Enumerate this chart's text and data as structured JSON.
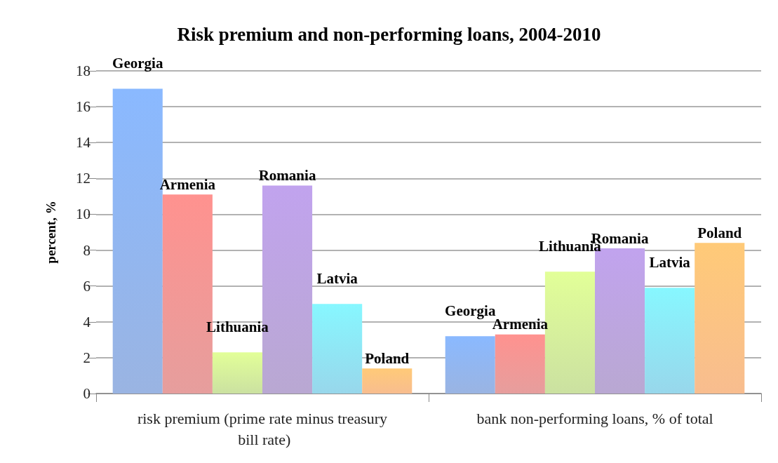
{
  "chart_data": {
    "type": "bar",
    "title": "Risk premium and non-performing loans, 2004-2010",
    "ylabel": "percent, %",
    "categories": [
      "risk premium (prime rate minus treasury bill rate)",
      "bank non-performing loans, % of total"
    ],
    "series": [
      {
        "name": "Georgia",
        "color": "#6f94d6",
        "values": [
          17.0,
          3.2
        ]
      },
      {
        "name": "Armenia",
        "color": "#dc7573",
        "values": [
          11.1,
          3.3
        ]
      },
      {
        "name": "Lithuania",
        "color": "#b5d57a",
        "values": [
          2.3,
          6.8
        ]
      },
      {
        "name": "Romania",
        "color": "#9b83bf",
        "values": [
          11.6,
          8.1
        ]
      },
      {
        "name": "Latvia",
        "color": "#6cc6e3",
        "values": [
          5.0,
          5.9
        ]
      },
      {
        "name": "Poland",
        "color": "#f6a260",
        "values": [
          1.4,
          8.4
        ]
      }
    ],
    "ylim": [
      0,
      18
    ],
    "yticks": [
      0,
      2,
      4,
      6,
      8,
      10,
      12,
      14,
      16,
      18
    ],
    "grid": "y"
  }
}
